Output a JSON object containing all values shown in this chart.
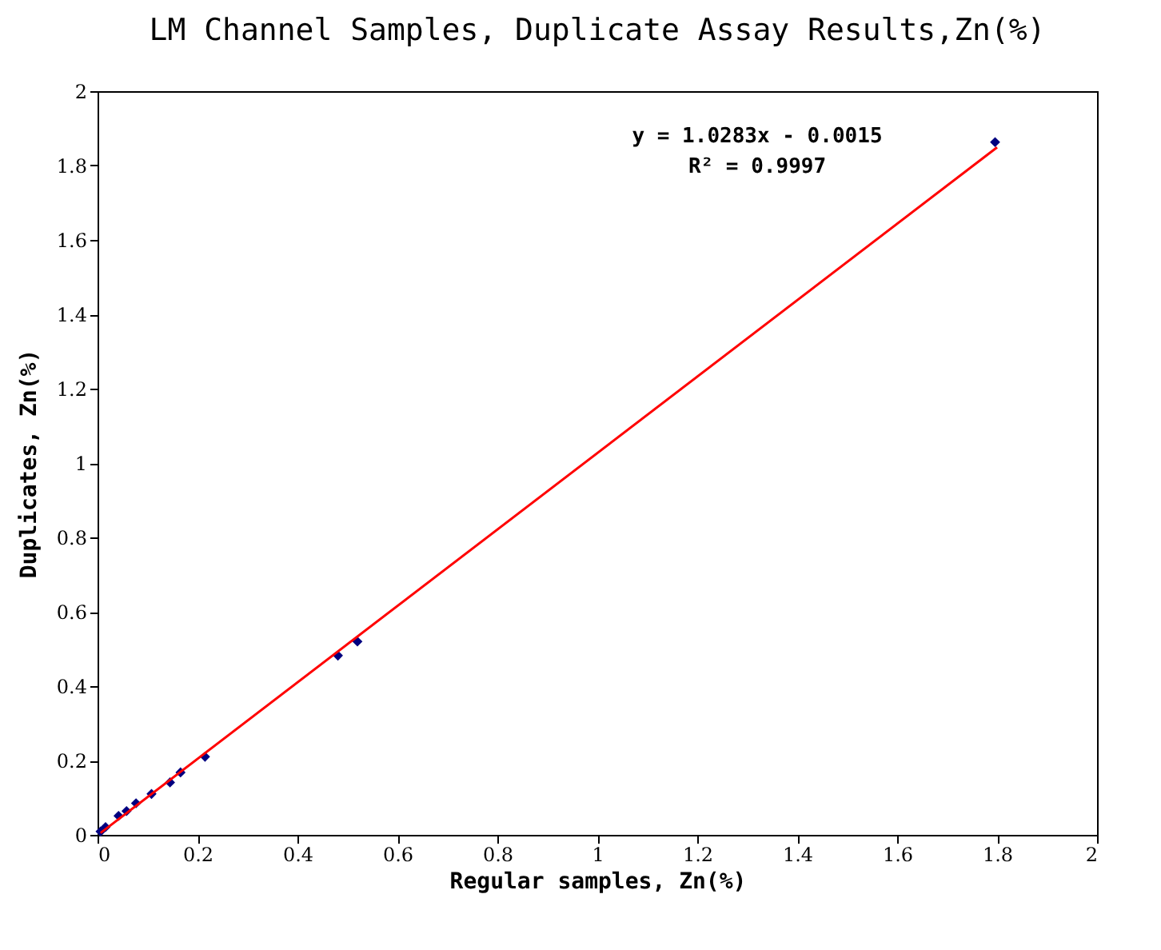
{
  "chart_data": {
    "type": "scatter",
    "title": "LM Channel Samples, Duplicate Assay Results,Zn(%)",
    "xlabel": "Regular samples, Zn(%)",
    "ylabel": "Duplicates, Zn(%)",
    "annotations": [
      "y = 1.0283x - 0.0015",
      "R² = 0.9997"
    ],
    "series": [
      {
        "type": "scatter",
        "color": "#000080",
        "marker": "diamond",
        "x": [
          0.006,
          0.016,
          0.042,
          0.058,
          0.077,
          0.108,
          0.145,
          0.166,
          0.215,
          0.481,
          0.52,
          1.796
        ],
        "values": [
          0.009,
          0.021,
          0.051,
          0.064,
          0.085,
          0.11,
          0.141,
          0.168,
          0.21,
          0.482,
          0.52,
          1.863
        ]
      },
      {
        "type": "line",
        "color": "#ff0000",
        "line_style": "solid",
        "x": [
          0.006,
          1.8
        ],
        "values": [
          0.005,
          1.849
        ]
      }
    ],
    "xlim": [
      0,
      2
    ],
    "ylim": [
      0,
      2
    ],
    "xticks": [
      0,
      0.2,
      0.4,
      0.6,
      0.8,
      1,
      1.2,
      1.4,
      1.6,
      1.8,
      2
    ],
    "yticks": [
      0,
      0.2,
      0.4,
      0.6,
      0.8,
      1,
      1.2,
      1.4,
      1.6,
      1.8,
      2
    ],
    "grid": false
  }
}
